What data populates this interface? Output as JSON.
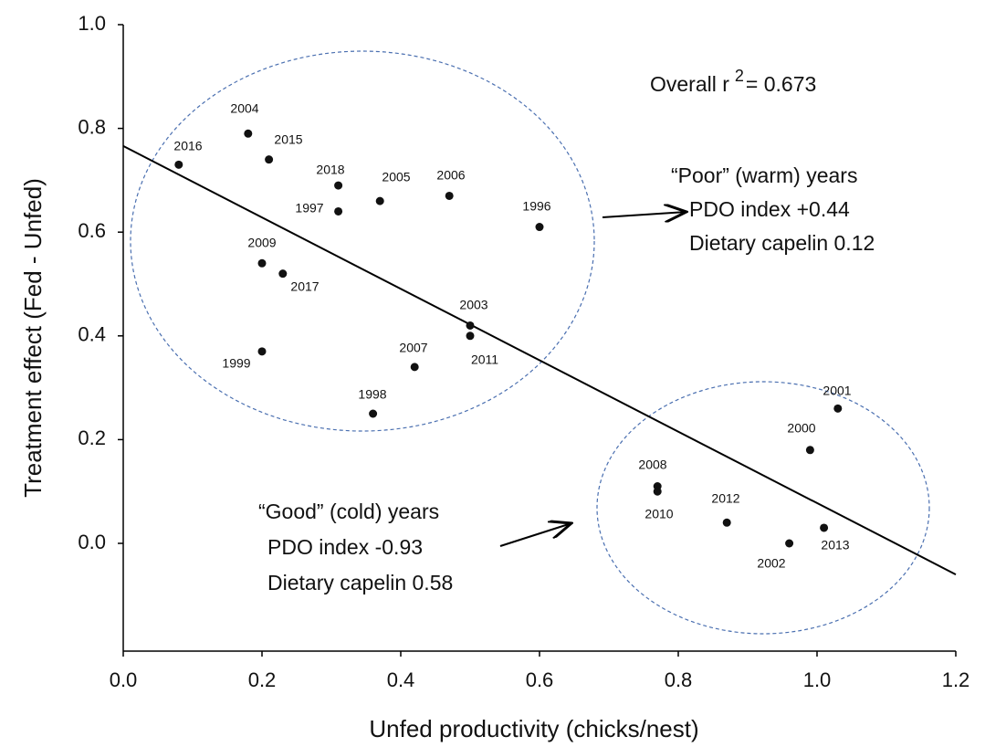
{
  "chart_data": {
    "type": "scatter",
    "x_label": "Unfed productivity (chicks/nest)",
    "y_label": "Treatment effect (Fed - Unfed)",
    "xlim": [
      0.0,
      1.2
    ],
    "ylim": [
      -0.2,
      1.0
    ],
    "xticks": [
      {
        "value": 0,
        "label": "0.0"
      },
      0.2,
      0.4,
      0.6,
      0.8,
      {
        "value": 1,
        "label": "1.0"
      },
      1.2
    ],
    "yticks": [
      {
        "value": 0,
        "label": "0.0"
      },
      0.2,
      0.4,
      0.6,
      0.8,
      {
        "value": 1,
        "label": "1.0"
      }
    ],
    "color": "#111111",
    "point_labels": [
      "2016",
      "2004",
      "2015",
      "2018",
      "2005",
      "2006",
      "1997",
      "1996",
      "2009",
      "2017",
      "2003",
      "2011",
      "1999",
      "2007",
      "1998",
      "2001",
      "2000",
      "2008",
      "2010",
      "2012",
      "2002",
      "2013"
    ],
    "x": [
      0.08,
      0.18,
      0.21,
      0.31,
      0.37,
      0.47,
      0.31,
      0.6,
      0.2,
      0.23,
      0.5,
      0.5,
      0.2,
      0.42,
      0.36,
      1.03,
      0.99,
      0.77,
      0.77,
      0.87,
      0.96,
      1.01
    ],
    "values": [
      0.73,
      0.79,
      0.74,
      0.69,
      0.66,
      0.67,
      0.64,
      0.61,
      0.54,
      0.52,
      0.42,
      0.4,
      0.37,
      0.34,
      0.25,
      0.26,
      0.18,
      0.11,
      0.1,
      0.04,
      0.0,
      0.03
    ],
    "trendline": {
      "x": [
        0.0,
        1.2
      ],
      "y": [
        0.766,
        -0.06
      ]
    },
    "annotations": {
      "r2": {
        "text": "Overall r",
        "superscript": "2",
        "rest": "= 0.673"
      },
      "poor": [
        "“Poor” (warm) years",
        "PDO index +0.44",
        "Dietary capelin 0.12"
      ],
      "good": [
        "“Good” (cold) years",
        "PDO index -0.93",
        "Dietary capelin 0.58"
      ]
    }
  }
}
